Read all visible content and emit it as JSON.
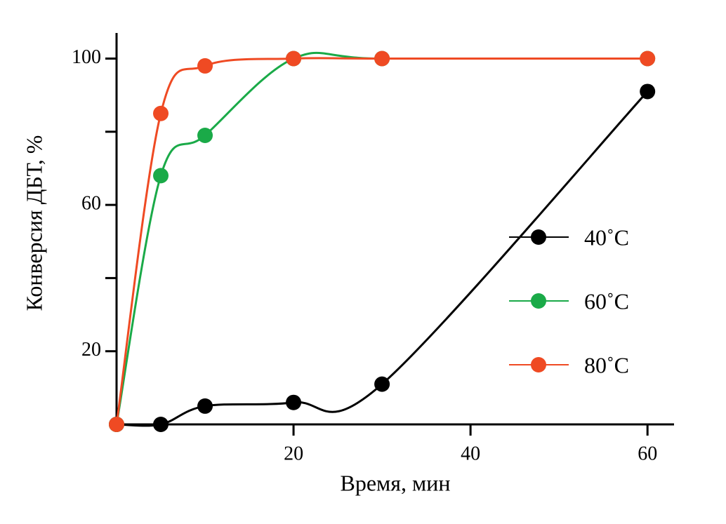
{
  "chart_data": {
    "type": "line",
    "x_label": "Время, мин",
    "y_label": "Конверсия ДБТ, %",
    "x": [
      0,
      5,
      10,
      20,
      30,
      60
    ],
    "series": [
      {
        "name": "40˚C",
        "color": "#000000",
        "values": [
          0,
          0,
          5,
          6,
          11,
          91
        ]
      },
      {
        "name": "60˚C",
        "color": "#1aaa48",
        "values": [
          0,
          68,
          79,
          100,
          100,
          100
        ]
      },
      {
        "name": "80˚C",
        "color": "#ef4a23",
        "values": [
          0,
          85,
          98,
          100,
          100,
          100
        ]
      }
    ],
    "xlim": [
      0,
      63
    ],
    "ylim": [
      0,
      107
    ],
    "xticks": [
      20,
      40,
      60
    ],
    "yticks": [
      20,
      60,
      100
    ],
    "yminor_ticks": [
      40,
      80
    ],
    "legend": "right",
    "smooth": true
  }
}
